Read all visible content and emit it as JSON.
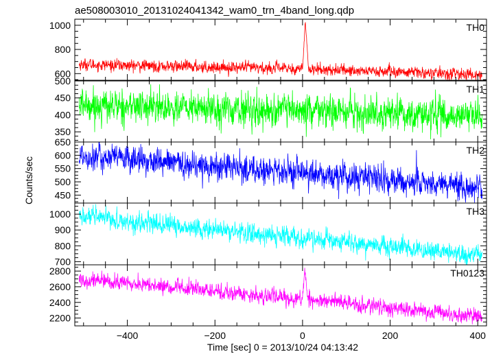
{
  "chart_data": {
    "type": "line",
    "title": "ae508003010_20131024041342_wam0_trn_4band_long.qdp",
    "xlabel": "Time [sec] 0 = 2013/10/24 04:13:42",
    "ylabel": "Counts/sec",
    "xlim": [
      -520,
      420
    ],
    "xticks": [
      -400,
      -200,
      0,
      200,
      400
    ],
    "xtick_labels": [
      "−400",
      "−200",
      "0",
      "200",
      "400"
    ],
    "grid": false,
    "panels": [
      {
        "name": "TH0",
        "color": "#ff0000",
        "ylim": [
          545,
          1050
        ],
        "yticks": [
          600,
          800,
          1000
        ],
        "ytick_labels": [
          "600",
          "800",
          "1000"
        ],
        "trend": {
          "x": [
            -510,
            0,
            410
          ],
          "y": [
            675,
            640,
            590
          ]
        },
        "noise": 22,
        "burst": {
          "t_start": 0,
          "t_peak": 6,
          "t_end": 14,
          "peak": 1030
        }
      },
      {
        "name": "TH1",
        "color": "#00ff00",
        "ylim": [
          320,
          500
        ],
        "yticks": [
          350,
          400,
          450,
          500
        ],
        "ytick_labels": [
          "350",
          "400",
          "450",
          "500"
        ],
        "trend": {
          "x": [
            -510,
            0,
            410
          ],
          "y": [
            430,
            410,
            395
          ]
        },
        "noise": 22,
        "burst": null
      },
      {
        "name": "TH2",
        "color": "#0000ff",
        "ylim": [
          420,
          650
        ],
        "yticks": [
          450,
          500,
          550,
          600,
          650
        ],
        "ytick_labels": [
          "450",
          "500",
          "550",
          "600",
          "650"
        ],
        "trend": {
          "x": [
            -510,
            0,
            410
          ],
          "y": [
            600,
            530,
            480
          ]
        },
        "noise": 24,
        "burst": null
      },
      {
        "name": "TH3",
        "color": "#00ffff",
        "ylim": [
          680,
          1070
        ],
        "yticks": [
          700,
          800,
          900,
          1000
        ],
        "ytick_labels": [
          "700",
          "800",
          "900",
          "1000"
        ],
        "trend": {
          "x": [
            -510,
            0,
            410
          ],
          "y": [
            985,
            845,
            735
          ]
        },
        "noise": 28,
        "burst": null
      },
      {
        "name": "TH0123",
        "color": "#ff00ff",
        "ylim": [
          2100,
          2880
        ],
        "yticks": [
          2200,
          2400,
          2600,
          2800
        ],
        "ytick_labels": [
          "2200",
          "2400",
          "2600",
          "2800"
        ],
        "trend": {
          "x": [
            -510,
            0,
            410
          ],
          "y": [
            2700,
            2440,
            2210
          ]
        },
        "noise": 45,
        "burst": {
          "t_start": 0,
          "t_peak": 5,
          "t_end": 12,
          "peak": 2840
        }
      }
    ]
  }
}
